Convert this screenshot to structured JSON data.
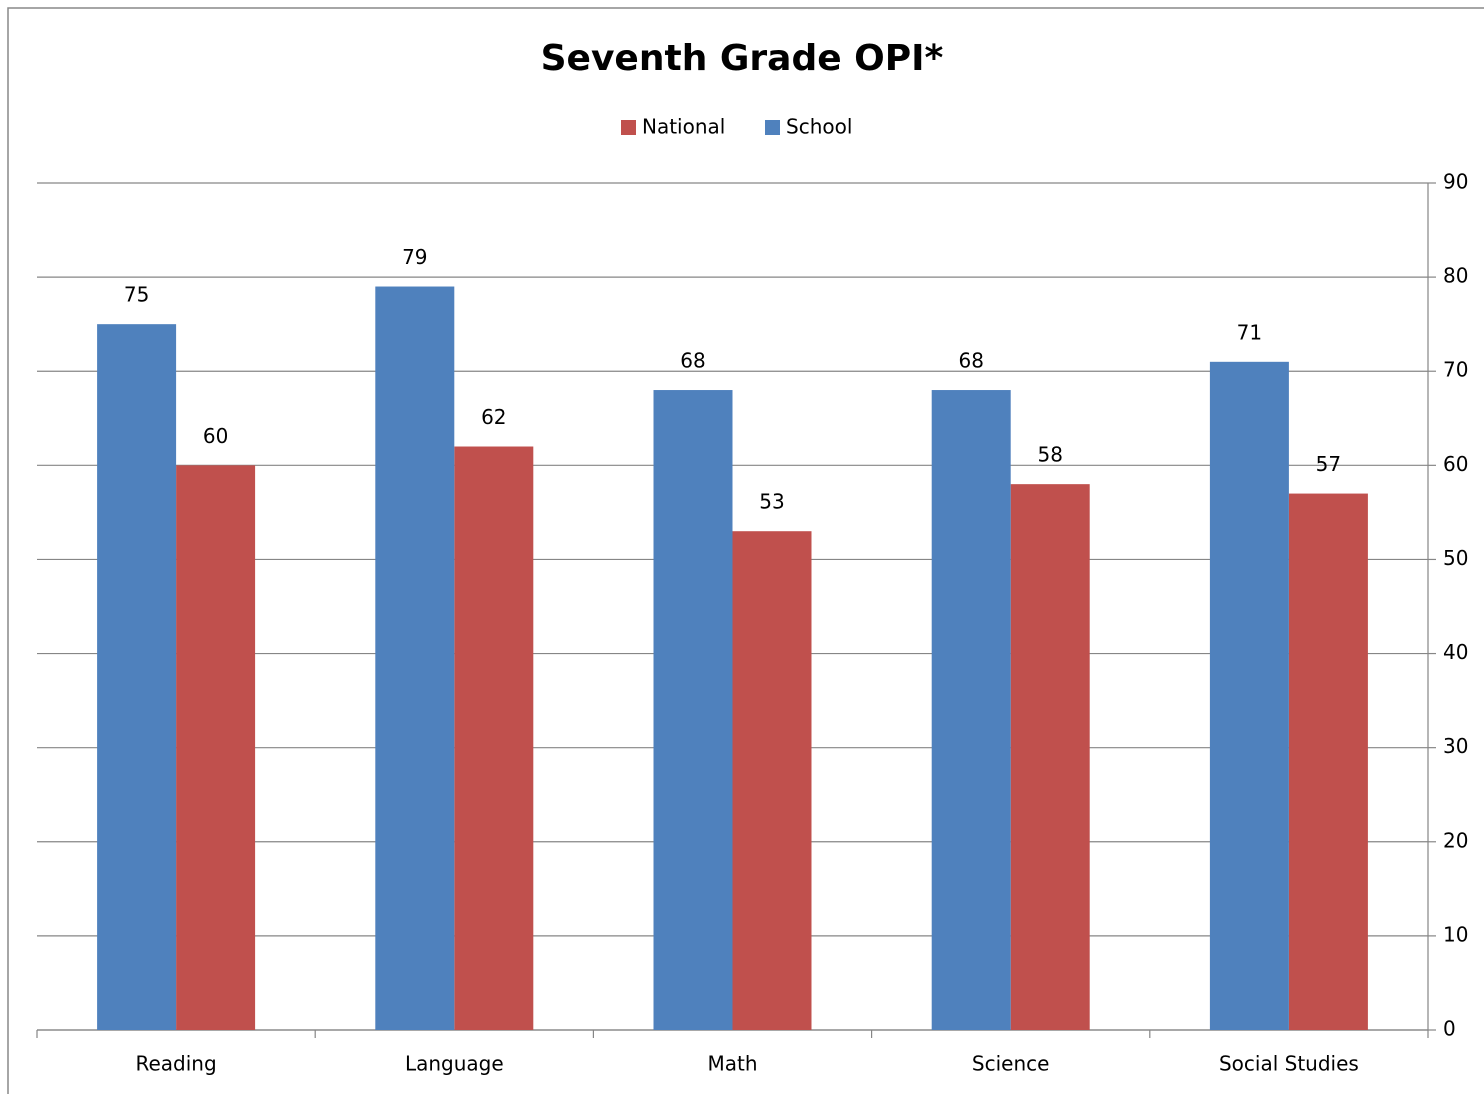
{
  "chart_data": {
    "type": "bar",
    "title": "Seventh Grade OPI*",
    "categories": [
      "Reading",
      "Language",
      "Math",
      "Science",
      "Social Studies"
    ],
    "series": [
      {
        "name": "National",
        "color": "#c0504d",
        "values": [
          60,
          62,
          53,
          58,
          57
        ]
      },
      {
        "name": "School",
        "color": "#4f81bd",
        "values": [
          75,
          79,
          68,
          68,
          71
        ]
      }
    ],
    "ylim": [
      0,
      90
    ],
    "yticks": [
      0,
      10,
      20,
      30,
      40,
      50,
      60,
      70,
      80,
      90
    ],
    "grid": true,
    "y_axis_side": "right",
    "legend_position": "top",
    "data_labels": true
  }
}
